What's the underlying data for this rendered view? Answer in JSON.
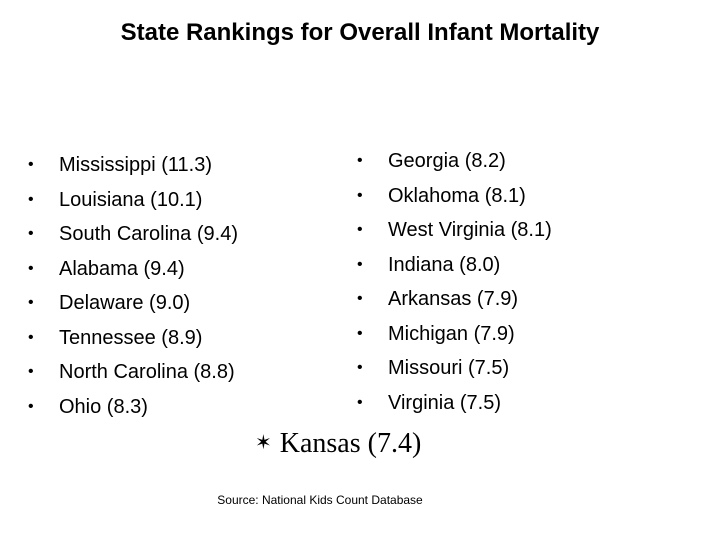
{
  "title": "State Rankings for Overall Infant Mortality",
  "bullet_char": "•",
  "left_column": [
    "Mississippi (11.3)",
    "Louisiana (10.1)",
    "South Carolina (9.4)",
    "Alabama (9.4)",
    "Delaware (9.0)",
    "Tennessee (8.9)",
    "North Carolina (8.8)",
    "Ohio (8.3)"
  ],
  "right_column": [
    "Georgia (8.2)",
    "Oklahoma (8.1)",
    "West Virginia (8.1)",
    "Indiana (8.0)",
    "Arkansas (7.9)",
    "Michigan (7.9)",
    "Missouri (7.5)",
    "Virginia (7.5)"
  ],
  "highlight": {
    "star_icon": "✶",
    "text": "Kansas (7.4)"
  },
  "source": "Source:  National Kids Count Database"
}
